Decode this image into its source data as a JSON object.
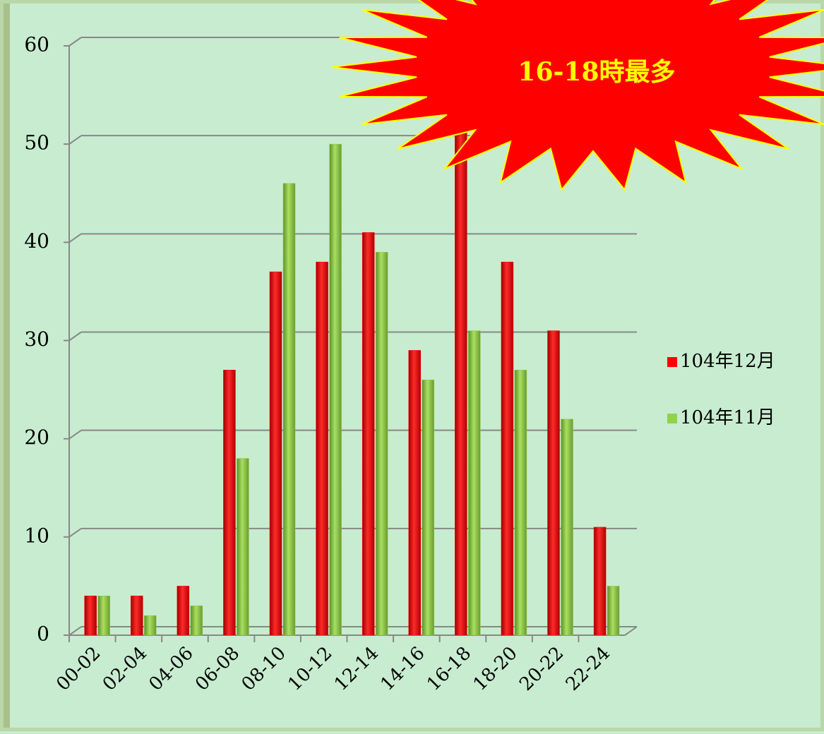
{
  "chart_data": {
    "type": "bar",
    "categories": [
      "00-02",
      "02-04",
      "04-06",
      "06-08",
      "08-10",
      "10-12",
      "12-14",
      "14-16",
      "16-18",
      "18-20",
      "20-22",
      "22-24"
    ],
    "series": [
      {
        "name": "104年12月",
        "color": "#ff0000",
        "values": [
          4,
          4,
          5,
          27,
          37,
          38,
          41,
          29,
          57,
          38,
          31,
          11
        ]
      },
      {
        "name": "104年11月",
        "color": "#92d050",
        "values": [
          4,
          2,
          3,
          18,
          46,
          50,
          39,
          26,
          31,
          27,
          22,
          5
        ]
      }
    ],
    "ylim": [
      0,
      60
    ],
    "yticks": [
      0,
      10,
      20,
      30,
      40,
      50,
      60
    ],
    "grid": true,
    "annotation": "16-18時最多",
    "legend": "right"
  }
}
